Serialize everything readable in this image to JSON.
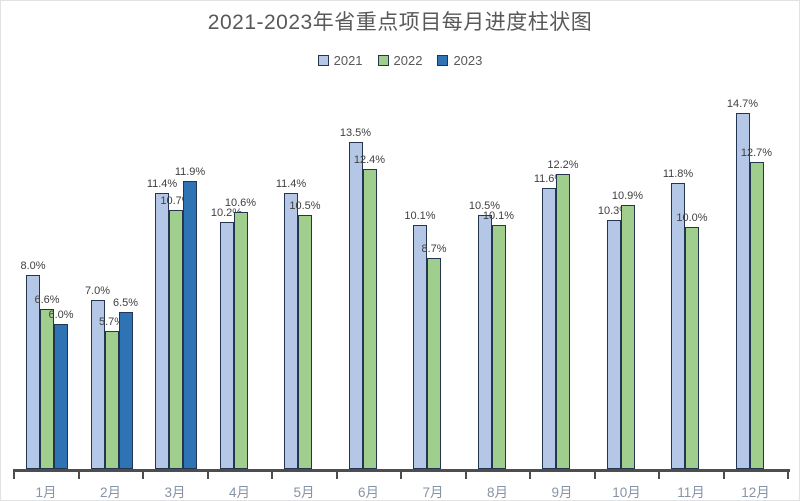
{
  "chart_data": {
    "type": "bar",
    "title": "2021-2023年省重点项目每月进度柱状图",
    "categories": [
      "1月",
      "2月",
      "3月",
      "4月",
      "5月",
      "6月",
      "7月",
      "8月",
      "9月",
      "10月",
      "11月",
      "12月"
    ],
    "series": [
      {
        "name": "2021",
        "color": "#B4C7E7",
        "values": [
          8.0,
          7.0,
          11.4,
          10.2,
          11.4,
          13.5,
          10.1,
          10.5,
          11.6,
          10.3,
          11.8,
          14.7
        ]
      },
      {
        "name": "2022",
        "color": "#A0CE8C",
        "values": [
          6.6,
          5.7,
          10.7,
          10.6,
          10.5,
          12.4,
          8.7,
          10.1,
          12.2,
          10.9,
          10.0,
          12.7
        ]
      },
      {
        "name": "2023",
        "color": "#2E74B5",
        "values": [
          6.0,
          6.5,
          11.9,
          null,
          null,
          null,
          null,
          null,
          null,
          null,
          null,
          null
        ]
      }
    ],
    "data_labels": [
      [
        "8.0%",
        "7.0%",
        "11.4%",
        "10.2%",
        "11.4%",
        "13.5%",
        "10.1%",
        "10.5%",
        "11.6%",
        "10.3%",
        "11.8%",
        "14.7%"
      ],
      [
        "6.6%",
        "5.7%",
        "10.7%",
        "10.6%",
        "10.5%",
        "12.4%",
        "8.7%",
        "10.1%",
        "12.2%",
        "10.9%",
        "10.0%",
        "12.7%"
      ],
      [
        "6.0%",
        "6.5%",
        "11.9%",
        null,
        null,
        null,
        null,
        null,
        null,
        null,
        null,
        null
      ]
    ],
    "label_format": "{value}%",
    "ylim": [
      0,
      15.9
    ],
    "grid": false,
    "legend_position": "top",
    "bar_border_color": "#233550",
    "axis_color": "#4d4d4d",
    "title_color": "#595959",
    "data_label_color": "#404040",
    "category_label_color": "#8793a6"
  }
}
